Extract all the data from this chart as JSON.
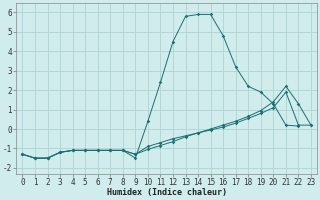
{
  "xlabel": "Humidex (Indice chaleur)",
  "x": [
    0,
    1,
    2,
    3,
    4,
    5,
    6,
    7,
    8,
    9,
    10,
    11,
    12,
    13,
    14,
    15,
    16,
    17,
    18,
    19,
    20,
    21,
    22,
    23
  ],
  "line1": [
    -1.3,
    -1.5,
    -1.5,
    -1.2,
    -1.1,
    -1.1,
    -1.1,
    -1.1,
    -1.1,
    -1.5,
    0.4,
    2.4,
    4.5,
    5.8,
    5.9,
    5.9,
    4.8,
    3.2,
    2.2,
    1.9,
    1.3,
    0.2,
    0.15,
    null
  ],
  "line2": [
    -1.3,
    -1.5,
    -1.5,
    -1.2,
    -1.1,
    -1.1,
    -1.1,
    -1.1,
    -1.1,
    -1.3,
    -0.9,
    -0.7,
    -0.5,
    -0.35,
    -0.2,
    -0.05,
    0.1,
    0.3,
    0.55,
    0.8,
    1.1,
    1.9,
    0.2,
    0.2
  ],
  "line3": [
    -1.3,
    -1.5,
    -1.5,
    -1.2,
    -1.1,
    -1.1,
    -1.1,
    -1.1,
    -1.1,
    -1.3,
    -1.05,
    -0.85,
    -0.65,
    -0.4,
    -0.2,
    0.0,
    0.2,
    0.4,
    0.65,
    0.95,
    1.4,
    2.2,
    1.3,
    0.2
  ],
  "color": "#1a7070",
  "bg_color": "#d0ecec",
  "grid_color": "#aed4d4",
  "ylim": [
    -2.3,
    6.5
  ],
  "xlim": [
    -0.5,
    23.5
  ],
  "yticks": [
    -2,
    -1,
    0,
    1,
    2,
    3,
    4,
    5,
    6
  ],
  "xticks": [
    0,
    1,
    2,
    3,
    4,
    5,
    6,
    7,
    8,
    9,
    10,
    11,
    12,
    13,
    14,
    15,
    16,
    17,
    18,
    19,
    20,
    21,
    22,
    23
  ],
  "xlabel_fontsize": 6.0,
  "tick_fontsize": 5.5
}
